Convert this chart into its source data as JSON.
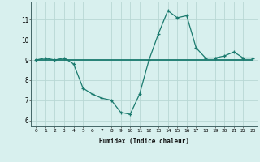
{
  "x": [
    0,
    1,
    2,
    3,
    4,
    5,
    6,
    7,
    8,
    9,
    10,
    11,
    12,
    13,
    14,
    15,
    16,
    17,
    18,
    19,
    20,
    21,
    22,
    23
  ],
  "y_curve": [
    9.0,
    9.1,
    9.0,
    9.1,
    8.8,
    7.6,
    7.3,
    7.1,
    7.0,
    6.4,
    6.3,
    7.3,
    9.0,
    10.3,
    11.45,
    11.1,
    11.2,
    9.6,
    9.1,
    9.1,
    9.2,
    9.4,
    9.1,
    9.1
  ],
  "y_flat": [
    9.0,
    9.0,
    9.0,
    9.0,
    9.0,
    9.0,
    9.0,
    9.0,
    9.0,
    9.0,
    9.0,
    9.0,
    9.0,
    9.0,
    9.0,
    9.0,
    9.0,
    9.0,
    9.0,
    9.0,
    9.0,
    9.0,
    9.0,
    9.0
  ],
  "line_color": "#1a7a6e",
  "bg_color": "#d8f0ee",
  "grid_color": "#b8d8d4",
  "xlabel": "Humidex (Indice chaleur)",
  "ylabel_ticks": [
    6,
    7,
    8,
    9,
    10,
    11
  ],
  "xlim": [
    -0.5,
    23.5
  ],
  "ylim": [
    5.7,
    11.9
  ]
}
